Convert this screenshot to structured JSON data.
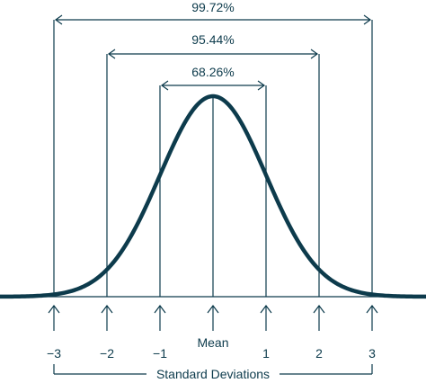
{
  "diagram": {
    "percentages": [
      "68.26%",
      "95.44%",
      "99.72%"
    ],
    "tick_labels": [
      "−3",
      "−2",
      "−1",
      "1",
      "2",
      "3"
    ],
    "center_label": "Mean",
    "axis_label": "Standard Deviations",
    "color": "#0d3b4c",
    "shape": "normal-distribution-bell-curve"
  }
}
